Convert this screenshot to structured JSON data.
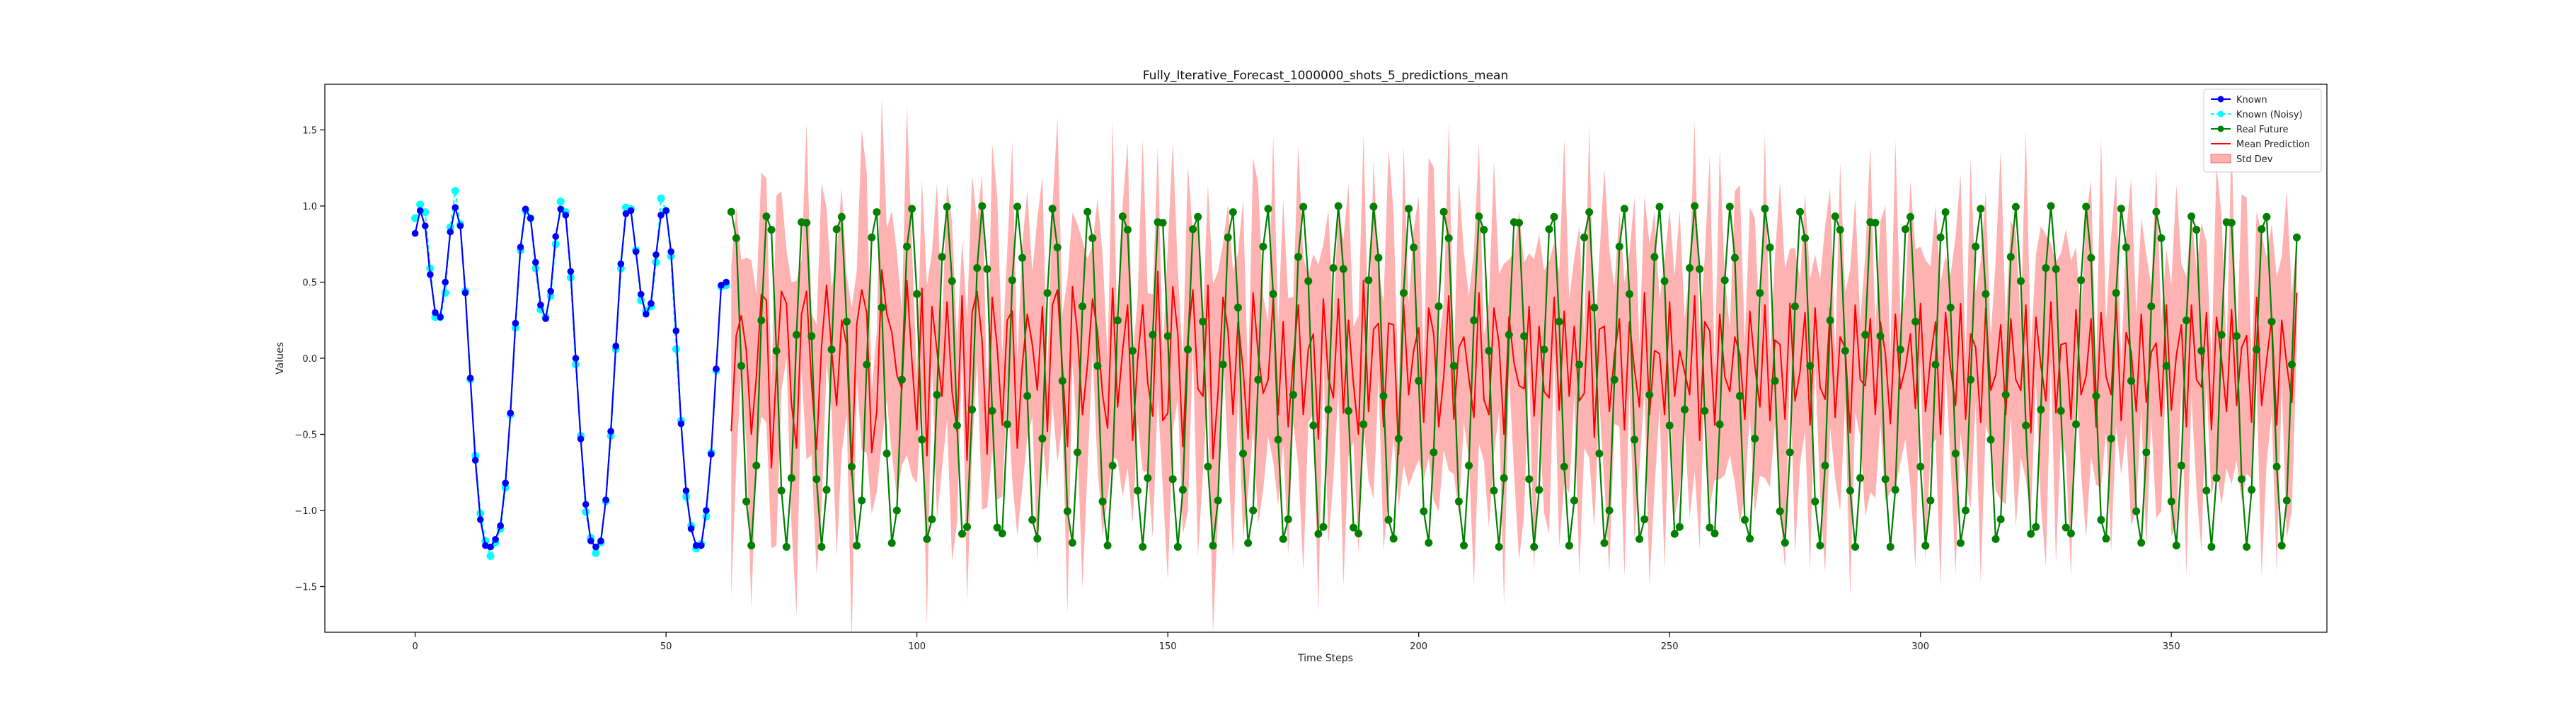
{
  "chart_data": {
    "type": "line",
    "title": "Fully_Iterative_Forecast_1000000_shots_5_predictions_mean",
    "xlabel": "Time Steps",
    "ylabel": "Values",
    "xlim": [
      -18,
      381
    ],
    "ylim": [
      -1.8,
      1.8
    ],
    "xticks": [
      0,
      50,
      100,
      150,
      200,
      250,
      300,
      350
    ],
    "yticks": [
      -1.5,
      -1.0,
      -0.5,
      0.0,
      0.5,
      1.0,
      1.5
    ],
    "xtick_labels": [
      "0",
      "50",
      "100",
      "150",
      "200",
      "250",
      "300",
      "350"
    ],
    "ytick_labels": [
      "−1.5",
      "−1.0",
      "−0.5",
      "0.0",
      "0.5",
      "1.0",
      "1.5"
    ],
    "grid": false,
    "legend_position": "top-right",
    "legend": [
      {
        "label": "Known",
        "color": "#0000ff",
        "kind": "line-marker"
      },
      {
        "label": "Known (Noisy)",
        "color": "#00ffff",
        "kind": "line-marker"
      },
      {
        "label": "Real Future",
        "color": "#008000",
        "kind": "line-marker"
      },
      {
        "label": "Mean Prediction",
        "color": "#ff0000",
        "kind": "line"
      },
      {
        "label": "Std Dev",
        "color": "#ff0000",
        "kind": "band"
      }
    ],
    "series": {
      "known": {
        "name": "Known",
        "color": "#0000ff",
        "x_start": 0,
        "values": [
          0.82,
          0.97,
          0.87,
          0.55,
          0.3,
          0.27,
          0.5,
          0.83,
          0.99,
          0.87,
          0.43,
          -0.13,
          -0.67,
          -1.06,
          -1.23,
          -1.24,
          -1.19,
          -1.1,
          -0.82,
          -0.36,
          0.23,
          0.73,
          0.98,
          0.92,
          0.63,
          0.35,
          0.26,
          0.44,
          0.8,
          0.98,
          0.94,
          0.57,
          0.0,
          -0.53,
          -0.96,
          -1.2,
          -1.24,
          -1.2,
          -0.93,
          -0.48,
          0.08,
          0.62,
          0.95,
          0.97,
          0.7,
          0.42,
          0.29,
          0.36,
          0.68,
          0.94,
          0.97,
          0.7,
          0.18,
          -0.43,
          -0.87,
          -1.12,
          -1.23,
          -1.23,
          -1.0,
          -0.63,
          -0.07,
          0.48,
          0.5
        ]
      },
      "known_noisy": {
        "name": "Known (Noisy)",
        "color": "#00ffff",
        "x_start": 0,
        "values": [
          0.92,
          1.01,
          0.96,
          0.59,
          0.27,
          0.27,
          0.43,
          0.86,
          1.1,
          0.88,
          0.44,
          -0.14,
          -0.64,
          -1.02,
          -1.2,
          -1.3,
          -1.21,
          -1.12,
          -0.85,
          -0.37,
          0.2,
          0.71,
          0.97,
          0.92,
          0.59,
          0.32,
          0.27,
          0.41,
          0.75,
          1.03,
          0.96,
          0.53,
          -0.04,
          -0.51,
          -1.01,
          -1.18,
          -1.28,
          -1.21,
          -0.94,
          -0.51,
          0.06,
          0.59,
          0.99,
          0.98,
          0.71,
          0.38,
          0.31,
          0.34,
          0.63,
          1.05,
          0.97,
          0.67,
          0.06,
          -0.41,
          -0.91,
          -1.1,
          -1.25,
          -1.22,
          -1.04,
          -0.62,
          -0.08,
          0.47,
          0.48
        ]
      },
      "real_future": {
        "name": "Real Future",
        "color": "#008000",
        "x_start": 63,
        "period": 7.1,
        "amplitude": 1.12,
        "offset": -0.12,
        "phase_deg": 75
      },
      "mean_prediction": {
        "name": "Mean Prediction",
        "color": "#ff0000",
        "x_start": 63,
        "values": [
          -0.48,
          0.15,
          0.28,
          0.05,
          -0.5,
          -0.12,
          0.42,
          0.38,
          -0.72,
          -0.08,
          0.44,
          0.36,
          -0.3,
          -0.59,
          0.29,
          0.44,
          -0.17,
          -0.6,
          0.08,
          0.48,
          0.05,
          -0.31,
          0.25,
          0.09,
          -0.77,
          0.22,
          0.45,
          0.3,
          -0.62,
          -0.35,
          0.58,
          0.29,
          0.17,
          -0.11,
          -0.2,
          0.51,
          -0.02,
          -0.47,
          0.46,
          -0.64,
          0.34,
          0.05,
          -0.25,
          0.37,
          -0.22,
          -0.48,
          0.41,
          -0.67,
          0.3,
          0.44,
          0.11,
          -0.63,
          0.4,
          0.07,
          -0.44,
          0.25,
          0.31,
          -0.59,
          -0.05,
          0.29,
          0.09,
          -0.21,
          0.34,
          -0.48,
          0.35,
          0.45,
          -0.07,
          -0.58,
          0.47,
          0.16,
          -0.37,
          -0.04,
          0.39,
          0.17,
          -0.24,
          -0.46,
          0.46,
          -0.32,
          0.05,
          0.35,
          -0.54,
          -0.01,
          0.35,
          -0.16,
          -0.38,
          0.57,
          -0.41,
          -0.36,
          0.47,
          0.16,
          -0.58,
          0.13,
          0.45,
          -0.2,
          -0.25,
          0.48,
          -0.66,
          -0.23,
          0.4,
          0.18,
          -0.37,
          0.24,
          -0.07,
          -0.53,
          0.43,
          0.03,
          -0.23,
          -0.14,
          0.39,
          -0.37,
          0.24,
          -0.45,
          -0.01,
          0.35,
          -0.37,
          0.06,
          0.16,
          -0.53,
          0.39,
          -0.13,
          -0.26,
          0.39,
          -0.36,
          0.25,
          -0.17,
          -0.5,
          0.51,
          -0.35,
          0.19,
          0.23,
          -0.45,
          0.23,
          0.22,
          -0.63,
          0.35,
          -0.24,
          0.05,
          0.2,
          -0.42,
          0.33,
          0.16,
          -0.45,
          -0.12,
          0.41,
          -0.4,
          0.07,
          0.14,
          -0.13,
          -0.39,
          0.43,
          -0.27,
          -0.37,
          0.33,
          0.1,
          -0.5,
          0.27,
          -0.03,
          -0.18,
          -0.2,
          0.34,
          -0.38,
          0.21,
          -0.22,
          -0.26,
          0.4,
          -0.34,
          0.31,
          -0.25,
          0.21,
          -0.28,
          -0.23,
          0.44,
          -0.52,
          0.19,
          0.21,
          -0.35,
          0.02,
          0.26,
          -0.47,
          0.24,
          -0.07,
          -0.32,
          0.43,
          -0.37,
          0.05,
          0.03,
          -0.37,
          0.37,
          -0.25,
          0.05,
          -0.09,
          -0.24,
          0.41,
          -0.54,
          0.24,
          0.18,
          -0.44,
          0.29,
          -0.12,
          -0.22,
          0.14,
          0.03,
          -0.4,
          0.31,
          -0.05,
          -0.32,
          0.35,
          -0.41,
          0.12,
          0.09,
          -0.4,
          0.36,
          -0.28,
          -0.09,
          0.3,
          -0.44,
          0.33,
          -0.19,
          -0.27,
          0.33,
          -0.39,
          0.14,
          0.07,
          -0.49,
          0.35,
          -0.14,
          -0.18,
          0.26,
          -0.37,
          0.24,
          0.03,
          -0.43,
          0.29,
          -0.2,
          -0.06,
          0.16,
          -0.33,
          0.36,
          -0.35,
          0.0,
          0.24,
          -0.5,
          0.3,
          -0.06,
          -0.31,
          0.36,
          -0.4,
          0.16,
          0.07,
          -0.42,
          0.33,
          -0.21,
          -0.11,
          0.22,
          -0.37,
          0.26,
          -0.14,
          -0.21,
          0.35,
          -0.49,
          0.27,
          -0.05,
          -0.28,
          0.37,
          -0.36,
          0.09,
          0.1,
          -0.4,
          0.32,
          -0.24,
          -0.12,
          0.26,
          -0.45,
          0.3,
          -0.12,
          -0.24,
          0.38,
          -0.41,
          0.17,
          0.04,
          -0.35,
          0.29,
          -0.29,
          0.04,
          0.1,
          -0.38,
          0.35,
          -0.34,
          0.02,
          0.22,
          -0.45,
          0.35,
          -0.14,
          -0.19,
          0.3,
          -0.47,
          0.27,
          -0.01,
          -0.35,
          0.32,
          -0.31,
          0.07,
          0.15,
          -0.42,
          0.4,
          -0.31,
          -0.01,
          0.26,
          -0.44,
          0.25,
          -0.04,
          -0.29,
          0.43
        ]
      },
      "std_dev": {
        "name": "Std Dev",
        "color": "#ff0000",
        "fill_opacity": 0.3,
        "half_width_range": [
          0.35,
          1.15
        ]
      }
    }
  }
}
